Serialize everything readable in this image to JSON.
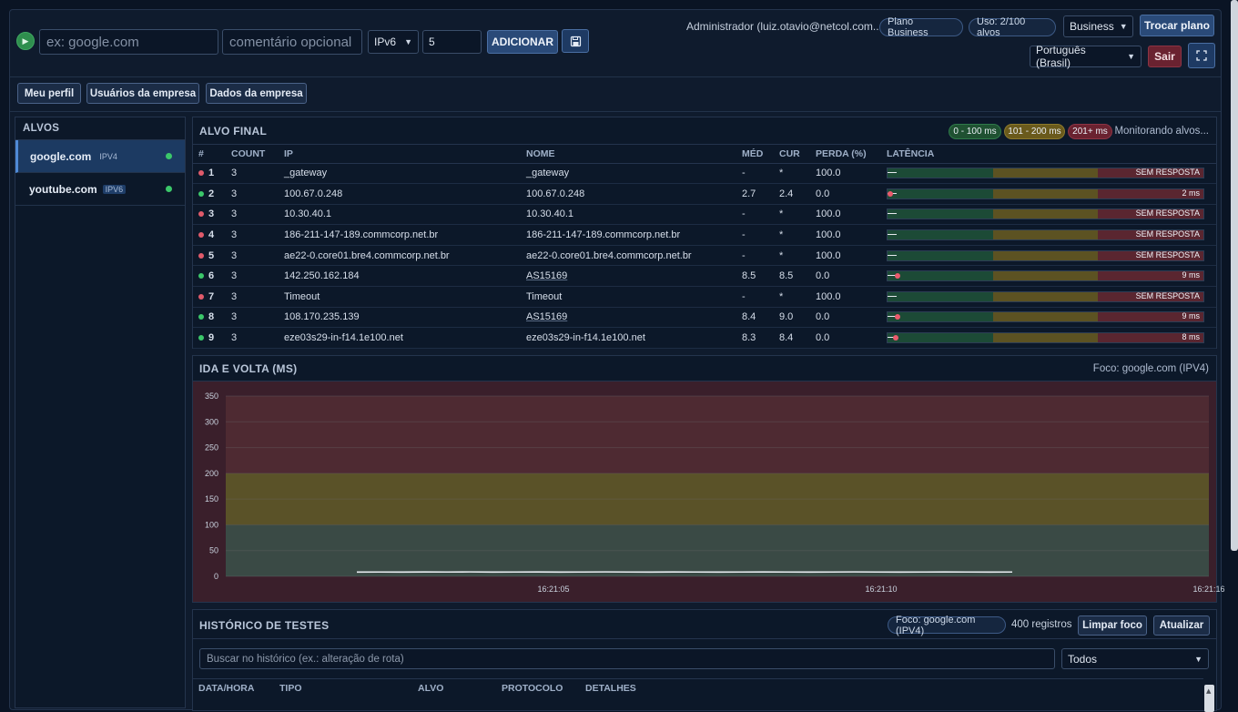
{
  "topbar": {
    "host_placeholder": "ex: google.com",
    "comment_placeholder": "comentário opcional",
    "protocol": "IPv6",
    "count_value": "5",
    "add_label": "ADICIONAR",
    "admin_text": "Administrador (luiz.otavio@netcol.com....",
    "plan_pill": "Plano Business",
    "usage_pill": "Uso: 2/100 alvos",
    "plan_select": "Business",
    "change_plan_label": "Trocar plano",
    "language": "Português (Brasil)",
    "logout_label": "Sair"
  },
  "profile_nav": {
    "my_profile": "Meu perfil",
    "company_users": "Usuários da empresa",
    "company_data": "Dados da empresa"
  },
  "targets": {
    "title": "ALVOS",
    "items": [
      {
        "host": "google.com",
        "tag": "IPV4",
        "status": "green"
      },
      {
        "host": "youtube.com",
        "tag": "IPV6",
        "status": "green"
      }
    ]
  },
  "final_target": {
    "title": "ALVO FINAL",
    "legend": [
      "0 - 100 ms",
      "101 - 200 ms",
      "201+ ms"
    ],
    "status_text": "Monitorando alvos...",
    "columns": [
      "#",
      "COUNT",
      "IP",
      "NOME",
      "MÉD",
      "CUR",
      "PERDA (%)",
      "LATÊNCIA"
    ],
    "hops": [
      {
        "n": "1",
        "count": "3",
        "ip": "_gateway",
        "name": "_gateway",
        "avg": "-",
        "cur": "*",
        "loss": "100.0",
        "latency": "SEM RESPOSTA",
        "ms": 0,
        "status": "red"
      },
      {
        "n": "2",
        "count": "3",
        "ip": "100.67.0.248",
        "name": "100.67.0.248",
        "avg": "2.7",
        "cur": "2.4",
        "loss": "0.0",
        "latency": "2 ms",
        "ms": 2,
        "status": "green"
      },
      {
        "n": "3",
        "count": "3",
        "ip": "10.30.40.1",
        "name": "10.30.40.1",
        "avg": "-",
        "cur": "*",
        "loss": "100.0",
        "latency": "SEM RESPOSTA",
        "ms": 0,
        "status": "red"
      },
      {
        "n": "4",
        "count": "3",
        "ip": "186-211-147-189.commcorp.net.br",
        "name": "186-211-147-189.commcorp.net.br",
        "avg": "-",
        "cur": "*",
        "loss": "100.0",
        "latency": "SEM RESPOSTA",
        "ms": 0,
        "status": "red"
      },
      {
        "n": "5",
        "count": "3",
        "ip": "ae22-0.core01.bre4.commcorp.net.br",
        "name": "ae22-0.core01.bre4.commcorp.net.br",
        "avg": "-",
        "cur": "*",
        "loss": "100.0",
        "latency": "SEM RESPOSTA",
        "ms": 0,
        "status": "red"
      },
      {
        "n": "6",
        "count": "3",
        "ip": "142.250.162.184",
        "name": "AS15169",
        "avg": "8.5",
        "cur": "8.5",
        "loss": "0.0",
        "latency": "9 ms",
        "ms": 9,
        "status": "green",
        "name_link": true
      },
      {
        "n": "7",
        "count": "3",
        "ip": "Timeout",
        "name": "Timeout",
        "avg": "-",
        "cur": "*",
        "loss": "100.0",
        "latency": "SEM RESPOSTA",
        "ms": 0,
        "status": "red"
      },
      {
        "n": "8",
        "count": "3",
        "ip": "108.170.235.139",
        "name": "AS15169",
        "avg": "8.4",
        "cur": "9.0",
        "loss": "0.0",
        "latency": "9 ms",
        "ms": 9,
        "status": "green",
        "name_link": true
      },
      {
        "n": "9",
        "count": "3",
        "ip": "eze03s29-in-f14.1e100.net",
        "name": "eze03s29-in-f14.1e100.net",
        "avg": "8.3",
        "cur": "8.4",
        "loss": "0.0",
        "latency": "8 ms",
        "ms": 8,
        "status": "green"
      }
    ]
  },
  "rtt_chart": {
    "title": "IDA E VOLTA (MS)",
    "focus": "Foco: google.com (IPV4)"
  },
  "chart_data": {
    "type": "line",
    "title": "IDA E VOLTA (MS)",
    "ylim": [
      0,
      350
    ],
    "yticks": [
      0,
      50,
      100,
      150,
      200,
      250,
      300,
      350
    ],
    "x_ticks": [
      "16:21:05",
      "16:21:10",
      "16:21:16"
    ],
    "bands": [
      {
        "from": 0,
        "to": 100,
        "color": "#3a4a45"
      },
      {
        "from": 100,
        "to": 200,
        "color": "#5a5228"
      },
      {
        "from": 200,
        "to": 350,
        "color": "#4e2a32"
      }
    ],
    "series": [
      {
        "x": [
          0.5,
          1.0,
          1.5,
          2.0,
          2.5,
          3.0,
          3.5,
          4.0,
          4.5,
          5.0,
          5.5,
          6.0,
          6.5,
          7.0,
          7.5,
          8.0,
          8.5,
          9.0,
          9.5,
          10.0,
          10.5,
          11.0,
          11.5,
          12.0,
          12.5,
          13.0,
          13.5,
          14.0,
          14.5,
          15.0
        ],
        "y": [
          8.2,
          8.4,
          8.3,
          8.5,
          8.4,
          8.6,
          8.3,
          8.4,
          8.5,
          8.3,
          8.4,
          8.6,
          8.4,
          8.3,
          8.5,
          8.4,
          8.3,
          8.4,
          8.5,
          8.4,
          8.3,
          8.4,
          8.6,
          8.4,
          8.3,
          8.4,
          8.5,
          8.4,
          8.3,
          8.4
        ],
        "color": "#e8ecf1"
      }
    ]
  },
  "history": {
    "title": "HISTÓRICO DE TESTES",
    "focus_pill": "Foco: google.com (IPV4)",
    "count": "400 registros",
    "clear_focus": "Limpar foco",
    "refresh": "Atualizar",
    "search_placeholder": "Buscar no histórico (ex.: alteração de rota)",
    "filter": "Todos",
    "columns": [
      "DATA/HORA",
      "TIPO",
      "ALVO",
      "PROTOCOLO",
      "DETALHES"
    ]
  },
  "colors": {
    "green": "#3bc76a",
    "red": "#e05a6a",
    "accent": "#2a4a78"
  }
}
